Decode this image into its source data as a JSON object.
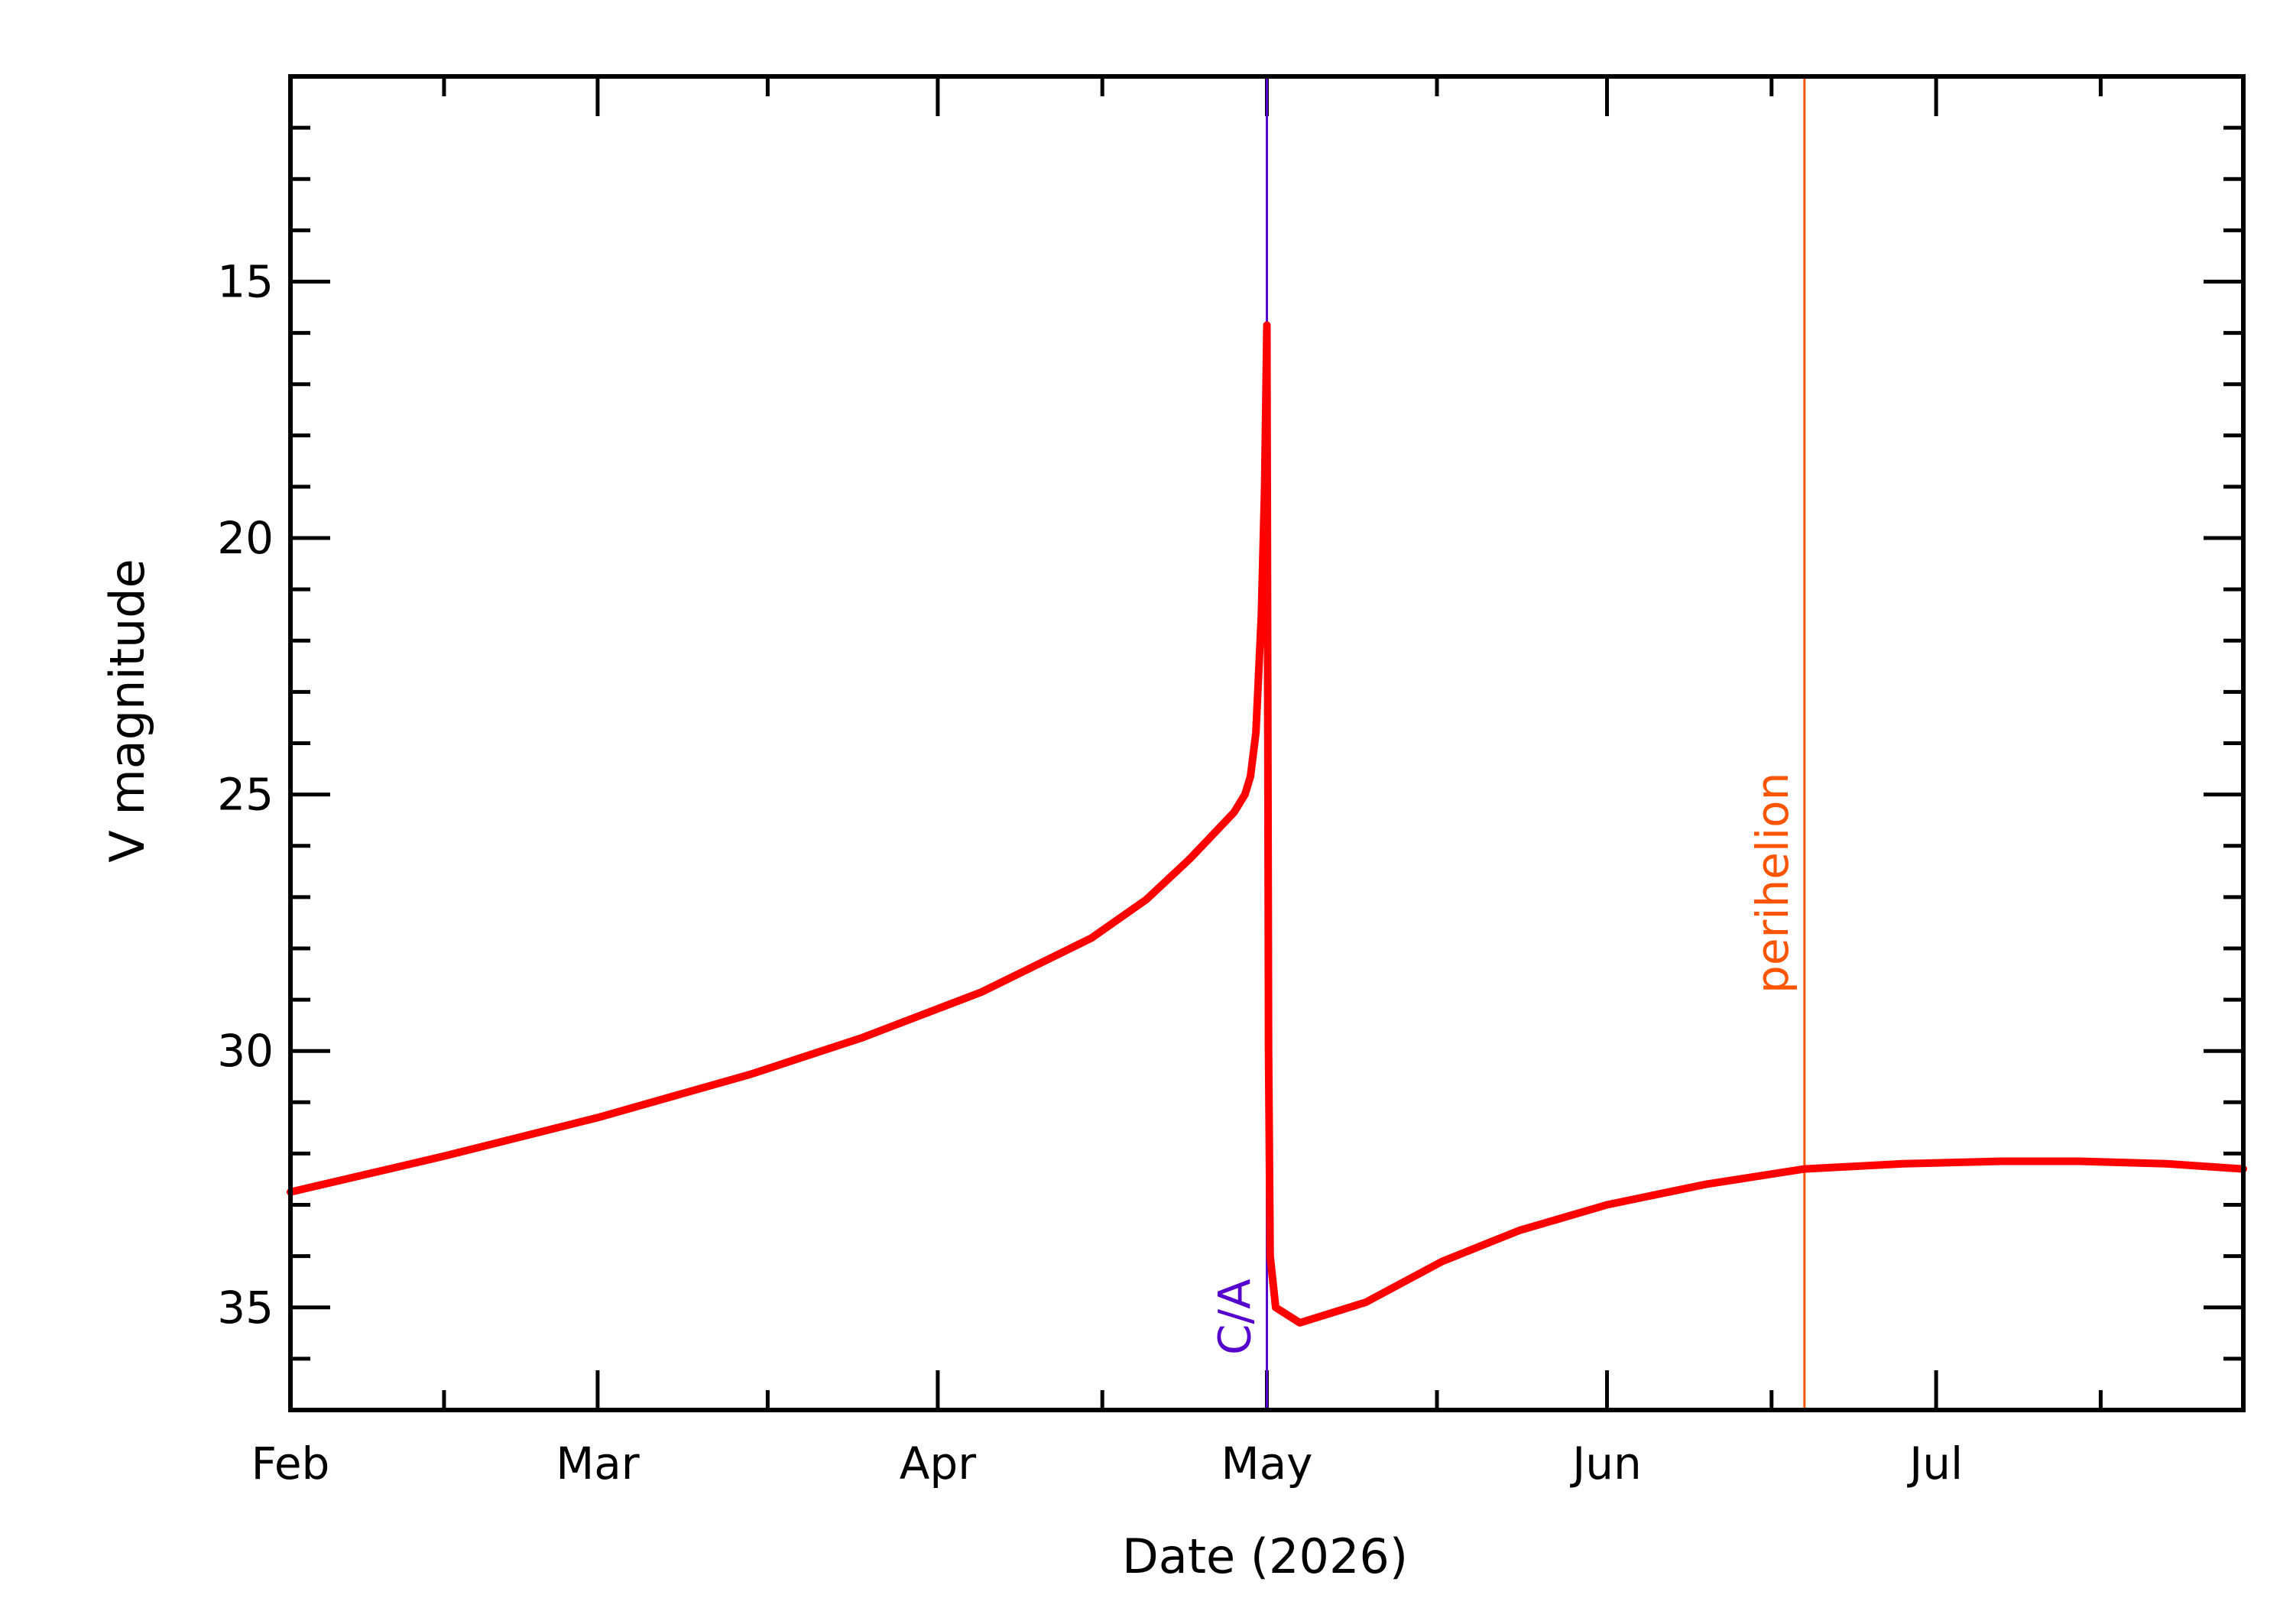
{
  "chart_data": {
    "type": "line",
    "xlabel": "Date (2026)",
    "ylabel": "V magnitude",
    "x_unit": "day",
    "xlim": [
      "2026-02-01",
      "2026-07-29"
    ],
    "ylim": [
      37,
      11
    ],
    "y_inverted": true,
    "x_ticks": [
      {
        "label": "Feb",
        "date": "2026-02-01"
      },
      {
        "label": "Mar",
        "date": "2026-03-01"
      },
      {
        "label": "Apr",
        "date": "2026-04-01"
      },
      {
        "label": "May",
        "date": "2026-05-01"
      },
      {
        "label": "Jun",
        "date": "2026-06-01"
      },
      {
        "label": "Jul",
        "date": "2026-07-01"
      }
    ],
    "y_ticks": [
      15,
      20,
      25,
      30,
      35
    ],
    "y_minor_step": 1,
    "grid": false,
    "series": [
      {
        "color": "#ff0000",
        "points": [
          [
            "2026-02-01",
            32.75
          ],
          [
            "2026-02-15",
            32.05
          ],
          [
            "2026-03-01",
            31.3
          ],
          [
            "2026-03-15",
            30.45
          ],
          [
            "2026-03-25",
            29.75
          ],
          [
            "2026-04-05",
            28.85
          ],
          [
            "2026-04-15",
            27.8
          ],
          [
            "2026-04-20",
            27.05
          ],
          [
            "2026-04-24",
            26.25
          ],
          [
            "2026-04-26",
            25.8
          ],
          [
            "2026-04-28",
            25.35
          ],
          [
            "2026-04-29",
            25.0
          ],
          [
            "2026-04-29.5",
            24.65
          ],
          [
            "2026-04-30",
            23.8
          ],
          [
            "2026-04-30.5",
            21.5
          ],
          [
            "2026-04-30.8",
            19.0
          ],
          [
            "2026-05-01",
            15.85
          ],
          [
            "2026-05-01.15",
            30.0
          ],
          [
            "2026-05-01.3",
            34.0
          ],
          [
            "2026-05-01.8",
            35.0
          ],
          [
            "2026-05-04",
            35.3
          ],
          [
            "2026-05-10",
            34.9
          ],
          [
            "2026-05-17",
            34.1
          ],
          [
            "2026-05-24",
            33.5
          ],
          [
            "2026-06-01",
            33.0
          ],
          [
            "2026-06-10",
            32.6
          ],
          [
            "2026-06-19",
            32.3
          ],
          [
            "2026-06-28",
            32.2
          ],
          [
            "2026-07-07",
            32.15
          ],
          [
            "2026-07-14",
            32.15
          ],
          [
            "2026-07-22",
            32.2
          ],
          [
            "2026-07-29",
            32.3
          ]
        ]
      }
    ],
    "markers": [
      {
        "label": "C/A",
        "date": "2026-05-01",
        "color": "#5500cc"
      },
      {
        "label": "perihelion",
        "date": "2026-06-19",
        "color": "#ff5500"
      }
    ]
  }
}
